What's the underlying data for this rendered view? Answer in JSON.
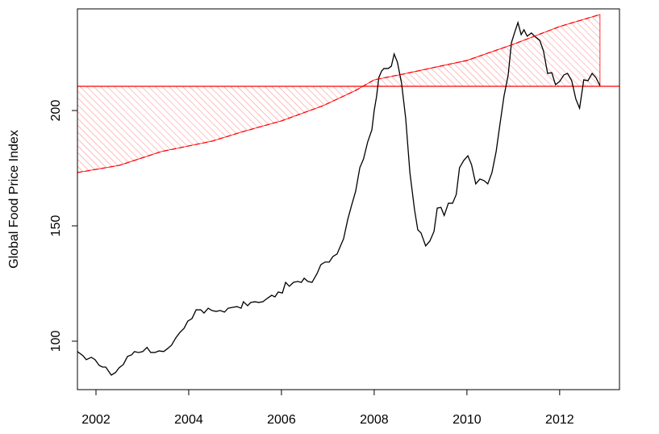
{
  "chart_data": {
    "type": "line",
    "ylabel": "Global Food Price Index",
    "xlim": [
      2001.6,
      2013.29
    ],
    "ylim": [
      79,
      244.06
    ],
    "xticks": [
      2002,
      2004,
      2006,
      2008,
      2010,
      2012
    ],
    "yticks": [
      100,
      150,
      200
    ],
    "hline": 210.5,
    "hline_color": "#ff0000",
    "band_color": "#ff0000",
    "series": [
      {
        "color": "#000000",
        "dash": false,
        "x": [
          2001.6,
          2001.72,
          2001.79,
          2001.9,
          2001.98,
          2002.07,
          2002.14,
          2002.21,
          2002.33,
          2002.42,
          2002.5,
          2002.59,
          2002.68,
          2002.77,
          2002.83,
          2002.92,
          2003.01,
          2003.1,
          2003.18,
          2003.27,
          2003.36,
          2003.46,
          2003.55,
          2003.63,
          2003.72,
          2003.81,
          2003.9,
          2003.98,
          2004.07,
          2004.16,
          2004.26,
          2004.33,
          2004.42,
          2004.5,
          2004.59,
          2004.68,
          2004.77,
          2004.85,
          2004.96,
          2005.04,
          2005.13,
          2005.18,
          2005.27,
          2005.34,
          2005.43,
          2005.51,
          2005.6,
          2005.69,
          2005.79,
          2005.86,
          2005.93,
          2006.02,
          2006.09,
          2006.17,
          2006.26,
          2006.35,
          2006.43,
          2006.49,
          2006.57,
          2006.66,
          2006.77,
          2006.85,
          2006.94,
          2007.03,
          2007.11,
          2007.2,
          2007.25,
          2007.34,
          2007.43,
          2007.51,
          2007.6,
          2007.69,
          2007.77,
          2007.86,
          2007.95,
          2008.0,
          2008.05,
          2008.1,
          2008.16,
          2008.21,
          2008.3,
          2008.37,
          2008.43,
          2008.5,
          2008.59,
          2008.68,
          2008.77,
          2008.87,
          2008.94,
          2009.01,
          2009.11,
          2009.2,
          2009.29,
          2009.36,
          2009.44,
          2009.51,
          2009.6,
          2009.69,
          2009.77,
          2009.84,
          2009.93,
          2010.02,
          2010.1,
          2010.19,
          2010.28,
          2010.37,
          2010.45,
          2010.54,
          2010.63,
          2010.71,
          2010.8,
          2010.89,
          2010.96,
          2011.03,
          2011.1,
          2011.17,
          2011.23,
          2011.3,
          2011.39,
          2011.48,
          2011.57,
          2011.65,
          2011.74,
          2011.83,
          2011.91,
          2012.0,
          2012.09,
          2012.17,
          2012.26,
          2012.35,
          2012.43,
          2012.52,
          2012.61,
          2012.7,
          2012.78,
          2012.87
        ],
        "values": [
          95.5,
          93.7,
          92.0,
          93.0,
          92.0,
          89.5,
          88.8,
          88.8,
          85.3,
          86.4,
          88.5,
          89.9,
          93.4,
          94.1,
          95.5,
          95.1,
          95.5,
          97.3,
          95.1,
          95.1,
          95.8,
          95.5,
          96.9,
          98.3,
          101.4,
          103.8,
          105.6,
          108.7,
          109.8,
          113.6,
          113.6,
          112.2,
          114.3,
          113.3,
          112.9,
          113.3,
          112.6,
          114.3,
          114.7,
          115.0,
          114.3,
          117.1,
          115.4,
          116.8,
          117.1,
          116.8,
          117.1,
          118.5,
          119.9,
          119.2,
          121.3,
          120.9,
          125.5,
          123.8,
          125.5,
          125.9,
          125.5,
          127.3,
          125.9,
          125.5,
          129.4,
          133.2,
          134.3,
          134.3,
          136.7,
          137.8,
          140.2,
          144.4,
          152.8,
          158.7,
          165.0,
          175.2,
          179.0,
          186.4,
          191.6,
          200.0,
          205.9,
          214.3,
          217.1,
          218.2,
          218.2,
          219.2,
          224.5,
          221.0,
          211.9,
          196.5,
          173.1,
          157.0,
          148.3,
          146.9,
          141.3,
          143.4,
          147.6,
          157.7,
          158.0,
          154.5,
          159.8,
          159.8,
          163.6,
          175.2,
          178.3,
          180.4,
          176.5,
          168.2,
          170.3,
          169.6,
          168.2,
          173.1,
          182.2,
          193.7,
          206.3,
          215.4,
          229.4,
          233.9,
          238.1,
          232.9,
          235.0,
          232.2,
          233.6,
          231.8,
          230.4,
          225.9,
          216.1,
          216.4,
          211.2,
          212.6,
          215.4,
          216.1,
          212.9,
          204.9,
          201.0,
          213.3,
          212.9,
          216.1,
          214.3,
          210.8
        ]
      },
      {
        "color": "#ff0000",
        "dash": true,
        "x": [
          2001.6,
          2002.5,
          2003.41,
          2004.5,
          2005.18,
          2006.0,
          2006.9,
          2007.6,
          2008.0,
          2008.6,
          2010.0,
          2011.0,
          2012.0,
          2012.87
        ],
        "values": [
          173.1,
          176.2,
          182.2,
          186.7,
          190.9,
          195.5,
          202.1,
          208.7,
          213.3,
          215.7,
          221.7,
          228.7,
          236.4,
          241.6
        ]
      }
    ]
  }
}
